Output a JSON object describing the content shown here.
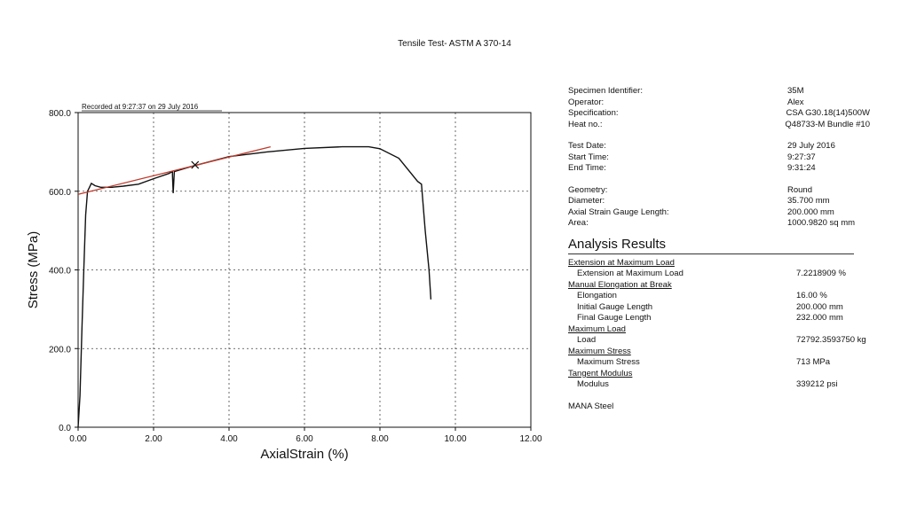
{
  "title": "Tensile Test- ASTM A 370-14",
  "chart_data": {
    "type": "line",
    "title": "Tensile Test- ASTM A 370-14",
    "xlabel": "AxialStrain (%)",
    "ylabel": "Stress (MPa)",
    "xlim": [
      0,
      12
    ],
    "ylim": [
      0,
      800
    ],
    "x_ticks": [
      "0.00",
      "2.00",
      "4.00",
      "6.00",
      "8.00",
      "10.00",
      "12.00"
    ],
    "y_ticks": [
      "0.0",
      "200.0",
      "400.0",
      "600.0",
      "800.0"
    ],
    "annotation": "Recorded at 9:27:37 on 29 July 2016",
    "grid": true,
    "series": [
      {
        "color": "#111111",
        "points": [
          [
            0.0,
            0
          ],
          [
            0.05,
            80
          ],
          [
            0.1,
            250
          ],
          [
            0.15,
            400
          ],
          [
            0.2,
            540
          ],
          [
            0.25,
            600
          ],
          [
            0.3,
            610
          ],
          [
            0.35,
            620
          ],
          [
            0.45,
            614
          ],
          [
            0.6,
            610
          ],
          [
            0.9,
            610
          ],
          [
            1.2,
            613
          ],
          [
            1.6,
            618
          ],
          [
            2.0,
            632
          ],
          [
            2.4,
            645
          ],
          [
            2.5,
            650
          ],
          [
            2.5,
            640
          ],
          [
            2.52,
            595
          ],
          [
            2.55,
            650
          ],
          [
            3.0,
            663
          ],
          [
            4.0,
            688
          ],
          [
            5.0,
            700
          ],
          [
            6.0,
            709
          ],
          [
            7.0,
            713
          ],
          [
            7.7,
            713
          ],
          [
            8.0,
            708
          ],
          [
            8.5,
            684
          ],
          [
            9.0,
            625
          ],
          [
            9.1,
            618
          ],
          [
            9.2,
            500
          ],
          [
            9.3,
            400
          ],
          [
            9.35,
            325
          ]
        ]
      },
      {
        "color": "#c0392b",
        "points": [
          [
            0.0,
            592
          ],
          [
            5.1,
            713
          ]
        ]
      }
    ],
    "marker": {
      "symbol": "x",
      "x": 3.1,
      "y": 667
    }
  },
  "info": {
    "specimen": [
      {
        "label": "Specimen Identifier:",
        "value": "35M"
      },
      {
        "label": "Operator:",
        "value": "Alex"
      },
      {
        "label": "Specification:",
        "value": "CSA G30.18(14)500W"
      },
      {
        "label": "Heat no.:",
        "value": "Q48733-M Bundle #10"
      }
    ],
    "timing": [
      {
        "label": "Test Date:",
        "value": "29 July 2016"
      },
      {
        "label": "Start Time:",
        "value": "9:27:37"
      },
      {
        "label": "End Time:",
        "value": "9:31:24"
      }
    ],
    "geometry": [
      {
        "label": "Geometry:",
        "value": "Round"
      },
      {
        "label": "Diameter:",
        "value": "35.700 mm"
      },
      {
        "label": "Axial Strain Gauge Length:",
        "value": "200.000 mm"
      },
      {
        "label": "Area:",
        "value": "1000.9820 sq mm"
      }
    ]
  },
  "analysis": {
    "title": "Analysis Results",
    "sections": [
      {
        "heading": "Extension at Maximum Load",
        "rows": [
          {
            "label": "Extension at Maximum Load",
            "value": "7.2218909 %"
          }
        ]
      },
      {
        "heading": "Manual Elongation at Break",
        "rows": [
          {
            "label": "Elongation",
            "value": "16.00 %"
          },
          {
            "label": "Initial Gauge Length",
            "value": "200.000 mm"
          },
          {
            "label": "Final Gauge Length",
            "value": "232.000 mm"
          }
        ]
      },
      {
        "heading": "Maximum Load",
        "rows": [
          {
            "label": "Load",
            "value": "72792.3593750 kg"
          }
        ]
      },
      {
        "heading": "Maximum Stress",
        "rows": [
          {
            "label": "Maximum Stress",
            "value": "713 MPa"
          }
        ]
      },
      {
        "heading": "Tangent Modulus",
        "rows": [
          {
            "label": "Modulus",
            "value": "339212 psi"
          }
        ]
      }
    ],
    "footer": "MANA Steel"
  }
}
